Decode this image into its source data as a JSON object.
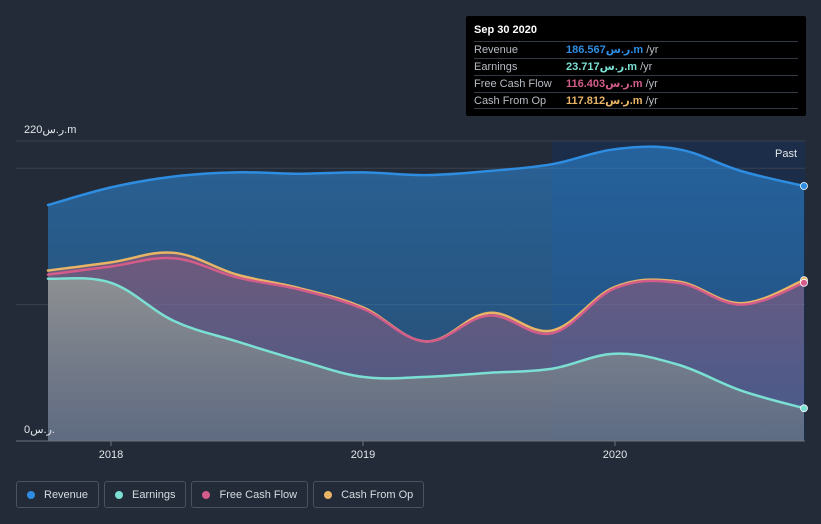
{
  "colors": {
    "revenue": "#2e8de0",
    "earnings": "#7be0d3",
    "fcf": "#d35c8a",
    "cfo": "#e8b566"
  },
  "tooltip": {
    "date": "Sep 30 2020",
    "rows": [
      {
        "label": "Revenue",
        "value": "186.567ر.س.m",
        "unit": "/yr"
      },
      {
        "label": "Earnings",
        "value": "23.717ر.س.m",
        "unit": "/yr"
      },
      {
        "label": "Free Cash Flow",
        "value": "116.403ر.س.m",
        "unit": "/yr"
      },
      {
        "label": "Cash From Op",
        "value": "117.812ر.س.m",
        "unit": "/yr"
      }
    ]
  },
  "past_label": "Past",
  "legend": [
    {
      "label": "Revenue",
      "color_key": "revenue"
    },
    {
      "label": "Earnings",
      "color_key": "earnings"
    },
    {
      "label": "Free Cash Flow",
      "color_key": "fcf"
    },
    {
      "label": "Cash From Op",
      "color_key": "cfo"
    }
  ],
  "chart_data": {
    "type": "area",
    "title": "",
    "ylabel_top": "220ر.س.m",
    "ylabel_bottom": "0ر.س.",
    "ylim": [
      0,
      220
    ],
    "xlim": [
      2017.75,
      2020.75
    ],
    "x_ticks": [
      {
        "value": 2018.0,
        "label": "2018"
      },
      {
        "value": 2019.0,
        "label": "2019"
      },
      {
        "value": 2020.0,
        "label": "2020"
      }
    ],
    "highlight_from": 2019.75,
    "series": [
      {
        "name": "Revenue",
        "color_key": "revenue",
        "x": [
          2017.75,
          2018.0,
          2018.25,
          2018.5,
          2018.75,
          2019.0,
          2019.25,
          2019.5,
          2019.75,
          2020.0,
          2020.25,
          2020.5,
          2020.75
        ],
        "values": [
          173,
          186,
          194,
          197,
          196,
          197,
          195,
          198,
          203,
          214,
          214,
          198,
          187
        ]
      },
      {
        "name": "Cash From Op",
        "color_key": "cfo",
        "x": [
          2017.75,
          2018.0,
          2018.25,
          2018.5,
          2018.75,
          2019.0,
          2019.25,
          2019.5,
          2019.75,
          2020.0,
          2020.25,
          2020.5,
          2020.75
        ],
        "values": [
          125,
          131,
          138,
          122,
          112,
          98,
          73,
          94,
          81,
          113,
          117,
          101,
          118
        ]
      },
      {
        "name": "Free Cash Flow",
        "color_key": "fcf",
        "x": [
          2017.75,
          2018.0,
          2018.25,
          2018.5,
          2018.75,
          2019.0,
          2019.25,
          2019.5,
          2019.75,
          2020.0,
          2020.25,
          2020.5,
          2020.75
        ],
        "values": [
          122,
          128,
          134,
          120,
          111,
          97,
          73,
          92,
          79,
          112,
          116,
          100,
          116
        ]
      },
      {
        "name": "Earnings",
        "color_key": "earnings",
        "x": [
          2017.75,
          2018.0,
          2018.25,
          2018.5,
          2018.75,
          2019.0,
          2019.25,
          2019.5,
          2019.75,
          2020.0,
          2020.25,
          2020.5,
          2020.75
        ],
        "values": [
          119,
          116,
          88,
          73,
          59,
          47,
          47,
          50,
          53,
          64,
          56,
          37,
          24
        ]
      }
    ]
  }
}
